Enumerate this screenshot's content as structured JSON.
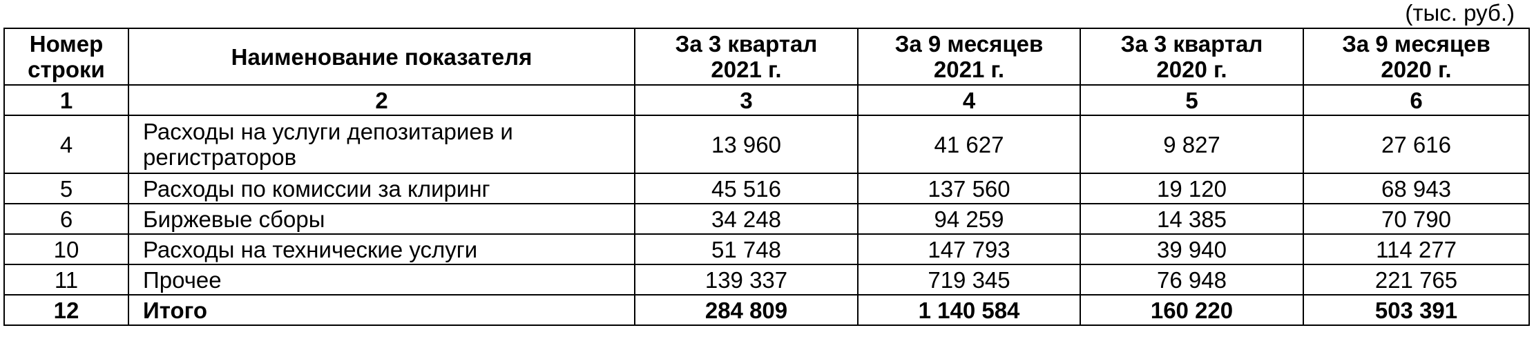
{
  "unit_label": "(тыс. руб.)",
  "headers": [
    "Номер строки",
    "Наименование показателя",
    "За 3 квартал 2021 г.",
    "За 9 месяцев 2021 г.",
    "За 3 квартал 2020 г.",
    "За 9 месяцев 2020 г."
  ],
  "header_lines": [
    [
      "Номер",
      "строки"
    ],
    [
      "Наименование показателя"
    ],
    [
      "За 3 квартал",
      "2021 г."
    ],
    [
      "За 9 месяцев",
      "2021 г."
    ],
    [
      "За 3 квартал",
      "2020 г."
    ],
    [
      "За 9 месяцев",
      "2020 г."
    ]
  ],
  "column_numbers": [
    "1",
    "2",
    "3",
    "4",
    "5",
    "6"
  ],
  "rows": [
    {
      "line": "4",
      "name": "Расходы на услуги депозитариев и регистраторов",
      "q3_2021": "13 960",
      "m9_2021": "41 627",
      "q3_2020": "9 827",
      "m9_2020": "27 616"
    },
    {
      "line": "5",
      "name": "Расходы по комиссии за клиринг",
      "q3_2021": "45 516",
      "m9_2021": "137 560",
      "q3_2020": "19 120",
      "m9_2020": "68 943"
    },
    {
      "line": "6",
      "name": "Биржевые сборы",
      "q3_2021": "34 248",
      "m9_2021": "94 259",
      "q3_2020": "14 385",
      "m9_2020": "70 790"
    },
    {
      "line": "10",
      "name": "Расходы на технические услуги",
      "q3_2021": "51 748",
      "m9_2021": "147 793",
      "q3_2020": "39 940",
      "m9_2020": "114 277"
    },
    {
      "line": "11",
      "name": "Прочее",
      "q3_2021": "139 337",
      "m9_2021": "719 345",
      "q3_2020": "76 948",
      "m9_2020": "221 765"
    },
    {
      "line": "12",
      "name": "Итого",
      "q3_2021": "284 809",
      "m9_2021": "1 140 584",
      "q3_2020": "160 220",
      "m9_2020": "503 391"
    }
  ],
  "name_lines_row0": [
    "Расходы на услуги депозитариев и",
    "регистраторов"
  ]
}
